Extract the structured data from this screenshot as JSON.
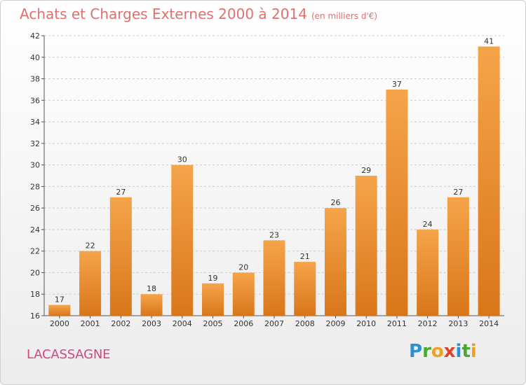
{
  "title": "Achats et Charges Externes 2000 à 2014",
  "subtitle": "(en milliers d'€)",
  "location": "LACASSAGNE",
  "logo": {
    "text": "Proxiti",
    "letters": [
      {
        "ch": "P",
        "color": "#2f8fd0"
      },
      {
        "ch": "r",
        "color": "#4aa830"
      },
      {
        "ch": "o",
        "color": "#f0a020"
      },
      {
        "ch": "x",
        "color": "#e0402c"
      },
      {
        "ch": "i",
        "color": "#2f8fd0"
      },
      {
        "ch": "t",
        "color": "#4aa830"
      },
      {
        "ch": "i",
        "color": "#f0a020"
      }
    ]
  },
  "colors": {
    "title": "#e07070",
    "location": "#d04880",
    "bar_light": "#f5a44a",
    "bar_dark": "#d9761a",
    "axis_text": "#333333",
    "grid": "#cccccc"
  },
  "chart_data": {
    "type": "bar",
    "title": "Achats et Charges Externes 2000 à 2014",
    "subtitle": "(en milliers d'€)",
    "xlabel": "",
    "ylabel": "",
    "categories": [
      "2000",
      "2001",
      "2002",
      "2003",
      "2004",
      "2005",
      "2006",
      "2007",
      "2008",
      "2009",
      "2010",
      "2011",
      "2012",
      "2013",
      "2014"
    ],
    "values": [
      17,
      22,
      27,
      18,
      30,
      19,
      20,
      23,
      21,
      26,
      29,
      37,
      24,
      27,
      41
    ],
    "ylim": [
      16,
      42
    ],
    "yticks": [
      16,
      18,
      20,
      22,
      24,
      26,
      28,
      30,
      32,
      34,
      36,
      38,
      40,
      42
    ],
    "grid": true,
    "legend": "none"
  }
}
